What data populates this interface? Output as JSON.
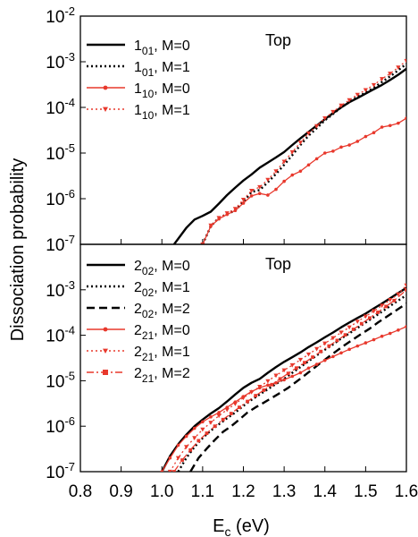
{
  "figure": {
    "ylabel": "Dissociation probability",
    "xlabel_main": "E",
    "xlabel_sub": "c",
    "xlabel_unit": " (eV)"
  },
  "chart_data": [
    {
      "type": "line",
      "panel": "top",
      "label": "Top",
      "xlim": [
        0.8,
        1.6
      ],
      "ylim": [
        1e-07,
        0.01
      ],
      "yscale": "log",
      "grid": false,
      "legend": "top-left",
      "x_ticks": [
        "0.8",
        "0.9",
        "1.0",
        "1.1",
        "1.2",
        "1.3",
        "1.4",
        "1.5",
        "1.6"
      ],
      "y_ticks": [
        {
          "base": "10",
          "exp": "-2",
          "value": 0.01
        },
        {
          "base": "10",
          "exp": "-3",
          "value": 0.001
        },
        {
          "base": "10",
          "exp": "-4",
          "value": 0.0001
        },
        {
          "base": "10",
          "exp": "-5",
          "value": 1e-05
        },
        {
          "base": "10",
          "exp": "-6",
          "value": 1e-06
        },
        {
          "base": "10",
          "exp": "-7",
          "value": 1e-07
        }
      ],
      "series": [
        {
          "name": "1",
          "sub": "01",
          "suffix": ", M=0",
          "color": "#000000",
          "style": "solid",
          "marker": "none",
          "x": [
            1.03,
            1.06,
            1.08,
            1.1,
            1.12,
            1.14,
            1.16,
            1.18,
            1.2,
            1.22,
            1.24,
            1.26,
            1.28,
            1.3,
            1.32,
            1.34,
            1.36,
            1.38,
            1.4,
            1.42,
            1.44,
            1.46,
            1.48,
            1.5,
            1.52,
            1.54,
            1.56,
            1.58,
            1.6
          ],
          "y": [
            1e-07,
            2.3e-07,
            3.5e-07,
            4.2e-07,
            5.2e-07,
            7.8e-07,
            1.2e-06,
            1.75e-06,
            2.5e-06,
            3.4e-06,
            4.8e-06,
            6.2e-06,
            8e-06,
            1.05e-05,
            1.5e-05,
            2.1e-05,
            2.9e-05,
            4e-05,
            5.5e-05,
            7.5e-05,
            0.0001,
            0.00013,
            0.00016,
            0.0002,
            0.00025,
            0.00031,
            0.0004,
            0.00052,
            0.0007
          ]
        },
        {
          "name": "1",
          "sub": "01",
          "suffix": ", M=1",
          "color": "#000000",
          "style": "dotted",
          "marker": "none",
          "x": [
            1.1,
            1.12,
            1.14,
            1.16,
            1.18,
            1.2,
            1.22,
            1.24,
            1.26,
            1.28,
            1.3,
            1.32,
            1.34,
            1.36,
            1.38,
            1.4,
            1.42,
            1.44,
            1.46,
            1.48,
            1.5,
            1.52,
            1.54,
            1.56,
            1.58,
            1.6
          ],
          "y": [
            1e-07,
            2.5e-07,
            3.8e-07,
            4.6e-07,
            5.5e-07,
            8.5e-07,
            1.4e-06,
            1.55e-06,
            2.3e-06,
            3.5e-06,
            5.5e-06,
            9e-06,
            1.5e-05,
            2.4e-05,
            3.5e-05,
            5.2e-05,
            7.2e-05,
            0.0001,
            0.00013,
            0.00017,
            0.00021,
            0.00027,
            0.00036,
            0.00048,
            0.00065,
            0.0009
          ]
        },
        {
          "name": "1",
          "sub": "10",
          "suffix": ", M=0",
          "color": "#e8382c",
          "style": "solid",
          "marker": "dot",
          "x": [
            1.1,
            1.12,
            1.14,
            1.16,
            1.18,
            1.2,
            1.22,
            1.24,
            1.26,
            1.28,
            1.3,
            1.32,
            1.34,
            1.36,
            1.38,
            1.4,
            1.42,
            1.44,
            1.46,
            1.48,
            1.5,
            1.52,
            1.54,
            1.56,
            1.58,
            1.6
          ],
          "y": [
            1e-07,
            2.5e-07,
            3.6e-07,
            4.5e-07,
            5.5e-07,
            8e-07,
            1.15e-06,
            1.3e-06,
            1.2e-06,
            1.6e-06,
            2.4e-06,
            3.3e-06,
            4e-06,
            5.5e-06,
            7.5e-06,
            1e-05,
            1.1e-05,
            1.35e-05,
            1.5e-05,
            1.8e-05,
            2.3e-05,
            2.8e-05,
            3.7e-05,
            4e-05,
            4.5e-05,
            5.8e-05
          ]
        },
        {
          "name": "1",
          "sub": "10",
          "suffix": ", M=1",
          "color": "#e8382c",
          "style": "dotted",
          "marker": "triangle",
          "x": [
            1.1,
            1.12,
            1.14,
            1.16,
            1.18,
            1.2,
            1.22,
            1.24,
            1.26,
            1.28,
            1.3,
            1.32,
            1.34,
            1.36,
            1.38,
            1.4,
            1.42,
            1.44,
            1.46,
            1.48,
            1.5,
            1.52,
            1.54,
            1.56,
            1.58,
            1.6
          ],
          "y": [
            1e-07,
            2.6e-07,
            3.8e-07,
            4.8e-07,
            6e-07,
            9.5e-07,
            1.5e-06,
            1.8e-06,
            2.6e-06,
            4e-06,
            6.5e-06,
            1.05e-05,
            1.7e-05,
            2.7e-05,
            3.9e-05,
            5.8e-05,
            8e-05,
            0.00011,
            0.000145,
            0.00019,
            0.00024,
            0.00031,
            0.00042,
            0.00055,
            0.00075,
            0.00105
          ]
        }
      ]
    },
    {
      "type": "line",
      "panel": "bottom",
      "label": "Top",
      "xlim": [
        0.8,
        1.6
      ],
      "ylim": [
        1e-07,
        0.01
      ],
      "yscale": "log",
      "grid": false,
      "legend": "top-left",
      "x_ticks": [
        "0.8",
        "0.9",
        "1.0",
        "1.1",
        "1.2",
        "1.3",
        "1.4",
        "1.5",
        "1.6"
      ],
      "y_ticks": [
        {
          "base": "10",
          "exp": "-3",
          "value": 0.001
        },
        {
          "base": "10",
          "exp": "-4",
          "value": 0.0001
        },
        {
          "base": "10",
          "exp": "-5",
          "value": 1e-05
        },
        {
          "base": "10",
          "exp": "-6",
          "value": 1e-06
        },
        {
          "base": "10",
          "exp": "-7",
          "value": 1e-07
        }
      ],
      "series": [
        {
          "name": "2",
          "sub": "02",
          "suffix": ", M=0",
          "color": "#000000",
          "style": "solid",
          "marker": "none",
          "x": [
            1.0,
            1.02,
            1.04,
            1.06,
            1.08,
            1.1,
            1.12,
            1.14,
            1.16,
            1.18,
            1.2,
            1.22,
            1.24,
            1.26,
            1.28,
            1.3,
            1.32,
            1.34,
            1.36,
            1.38,
            1.4,
            1.42,
            1.44,
            1.46,
            1.48,
            1.5,
            1.52,
            1.54,
            1.56,
            1.58,
            1.6
          ],
          "y": [
            1e-07,
            2.2e-07,
            4e-07,
            6.5e-07,
            1e-06,
            1.4e-06,
            1.9e-06,
            2.5e-06,
            3.5e-06,
            5e-06,
            7e-06,
            9e-06,
            1.1e-05,
            1.5e-05,
            2e-05,
            2.6e-05,
            3.3e-05,
            4.2e-05,
            5.5e-05,
            7e-05,
            9e-05,
            0.000115,
            0.00015,
            0.00019,
            0.00024,
            0.0003,
            0.00039,
            0.0005,
            0.00065,
            0.00085,
            0.0011
          ]
        },
        {
          "name": "2",
          "sub": "02",
          "suffix": ", M=1",
          "color": "#000000",
          "style": "dotted",
          "marker": "none",
          "x": [
            1.04,
            1.06,
            1.08,
            1.1,
            1.12,
            1.14,
            1.16,
            1.18,
            1.2,
            1.22,
            1.24,
            1.26,
            1.28,
            1.3,
            1.32,
            1.34,
            1.36,
            1.38,
            1.4,
            1.42,
            1.44,
            1.46,
            1.48,
            1.5,
            1.52,
            1.54,
            1.56,
            1.58,
            1.6
          ],
          "y": [
            1e-07,
            2e-07,
            3.5e-07,
            5.5e-07,
            8e-07,
            1.1e-06,
            1.5e-06,
            2e-06,
            2.8e-06,
            3.8e-06,
            5e-06,
            6.5e-06,
            8.5e-06,
            1.1e-05,
            1.5e-05,
            2e-05,
            2.7e-05,
            3.6e-05,
            4.8e-05,
            6.3e-05,
            8.5e-05,
            0.00011,
            0.000145,
            0.00019,
            0.00025,
            0.00033,
            0.00044,
            0.00058,
            0.00076
          ]
        },
        {
          "name": "2",
          "sub": "02",
          "suffix": ", M=2",
          "color": "#000000",
          "style": "dashed",
          "marker": "none",
          "x": [
            1.07,
            1.09,
            1.11,
            1.13,
            1.15,
            1.17,
            1.19,
            1.21,
            1.23,
            1.25,
            1.27,
            1.29,
            1.31,
            1.33,
            1.35,
            1.37,
            1.39,
            1.41,
            1.43,
            1.45,
            1.47,
            1.49,
            1.51,
            1.53,
            1.55,
            1.57,
            1.6
          ],
          "y": [
            1e-07,
            2e-07,
            3.2e-07,
            5e-07,
            7.5e-07,
            1e-06,
            1.4e-06,
            2e-06,
            2.6e-06,
            3.3e-06,
            4.2e-06,
            5.4e-06,
            7e-06,
            9.5e-06,
            1.3e-05,
            1.8e-05,
            2.5e-05,
            3.4e-05,
            4.6e-05,
            6.2e-05,
            8.2e-05,
            0.000108,
            0.00014,
            0.00019,
            0.00025,
            0.00033,
            0.0005
          ]
        },
        {
          "name": "2",
          "sub": "21",
          "suffix": ", M=0",
          "color": "#e8382c",
          "style": "solid",
          "marker": "dot",
          "x": [
            1.0,
            1.02,
            1.04,
            1.06,
            1.08,
            1.1,
            1.12,
            1.14,
            1.16,
            1.18,
            1.2,
            1.22,
            1.24,
            1.26,
            1.28,
            1.3,
            1.32,
            1.34,
            1.36,
            1.38,
            1.4,
            1.42,
            1.44,
            1.46,
            1.48,
            1.5,
            1.52,
            1.54,
            1.56,
            1.58,
            1.6
          ],
          "y": [
            1e-07,
            2e-07,
            3.8e-07,
            6e-07,
            9e-07,
            1.25e-06,
            1.6e-06,
            2e-06,
            2.6e-06,
            3.4e-06,
            4.5e-06,
            5.8e-06,
            7e-06,
            8e-06,
            9e-06,
            1.05e-05,
            1.25e-05,
            1.5e-05,
            1.9e-05,
            2.3e-05,
            2.8e-05,
            3.4e-05,
            4.1e-05,
            4.9e-05,
            5.8e-05,
            6.8e-05,
            8e-05,
            9.5e-05,
            0.00011,
            0.00013,
            0.000155
          ]
        },
        {
          "name": "2",
          "sub": "21",
          "suffix": ", M=1",
          "color": "#e8382c",
          "style": "dotted",
          "marker": "triangle",
          "x": [
            1.02,
            1.04,
            1.06,
            1.08,
            1.1,
            1.12,
            1.14,
            1.16,
            1.18,
            1.2,
            1.22,
            1.24,
            1.26,
            1.28,
            1.3,
            1.32,
            1.34,
            1.36,
            1.38,
            1.4,
            1.42,
            1.44,
            1.46,
            1.48,
            1.5,
            1.52,
            1.54,
            1.56,
            1.58,
            1.6
          ],
          "y": [
            1e-07,
            2e-07,
            3.5e-07,
            5.5e-07,
            8.5e-07,
            1.2e-06,
            1.7e-06,
            2.3e-06,
            3.1e-06,
            4.2e-06,
            5.6e-06,
            7.4e-06,
            9.8e-06,
            1.3e-05,
            1.7e-05,
            2.2e-05,
            2.9e-05,
            3.8e-05,
            5e-05,
            6.6e-05,
            8.7e-05,
            0.000115,
            0.00015,
            0.0002,
            0.00026,
            0.00034,
            0.00045,
            0.0006,
            0.0008,
            0.00125
          ]
        },
        {
          "name": "2",
          "sub": "21",
          "suffix": ", M=2",
          "color": "#e8382c",
          "style": "dashdot",
          "marker": "square",
          "x": [
            1.03,
            1.05,
            1.07,
            1.09,
            1.11,
            1.13,
            1.15,
            1.17,
            1.19,
            1.21,
            1.23,
            1.25,
            1.27,
            1.29,
            1.31,
            1.33,
            1.35,
            1.37,
            1.39,
            1.41,
            1.43,
            1.45,
            1.47,
            1.49,
            1.51,
            1.53,
            1.55,
            1.57,
            1.6
          ],
          "y": [
            1e-07,
            1.8e-07,
            3e-07,
            4.8e-07,
            7e-07,
            1e-06,
            1.4e-06,
            1.9e-06,
            2.6e-06,
            3.5e-06,
            4.7e-06,
            6.2e-06,
            8.2e-06,
            1.1e-05,
            1.45e-05,
            1.9e-05,
            2.5e-05,
            3.3e-05,
            4.4e-05,
            5.8e-05,
            7.7e-05,
            0.000102,
            0.000135,
            0.00018,
            0.00024,
            0.00032,
            0.00043,
            0.00058,
            0.001
          ]
        }
      ]
    }
  ]
}
